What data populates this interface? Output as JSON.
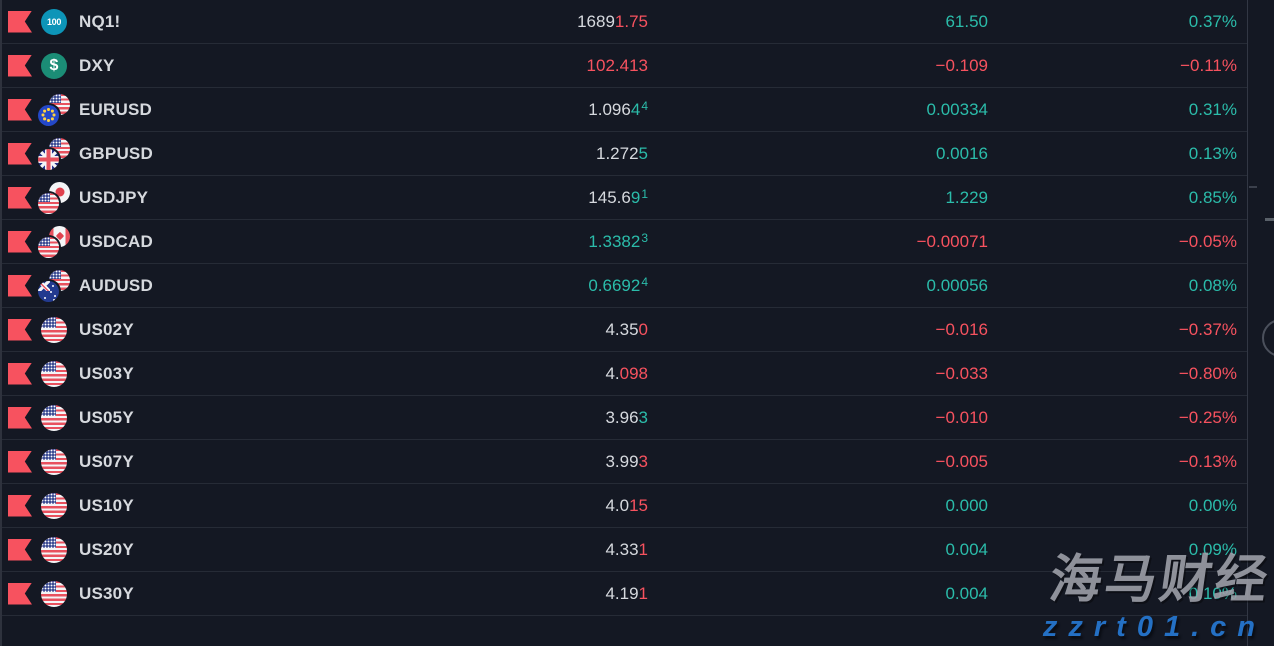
{
  "watchlist": {
    "rows": [
      {
        "symbol": "NQ1!",
        "icon": {
          "kind": "badge",
          "style": "nasdaq",
          "label": "100",
          "name": "nasdaq-100-icon"
        },
        "price": [
          {
            "t": "1689",
            "c": "neutral"
          },
          {
            "t": "1.75",
            "c": "down"
          }
        ],
        "change": {
          "t": "61.50",
          "dir": "up"
        },
        "percent": {
          "t": "0.37%",
          "dir": "up"
        }
      },
      {
        "symbol": "DXY",
        "icon": {
          "kind": "badge",
          "style": "dollar",
          "label": "$",
          "name": "dollar-index-icon"
        },
        "price": [
          {
            "t": "102.413",
            "c": "down"
          }
        ],
        "change": {
          "t": "−0.109",
          "dir": "down"
        },
        "percent": {
          "t": "−0.11%",
          "dir": "down"
        }
      },
      {
        "symbol": "EURUSD",
        "icon": {
          "kind": "pair",
          "front": "eu",
          "back": "us",
          "name": "eurusd-flags-icon"
        },
        "price": [
          {
            "t": "1.096",
            "c": "neutral"
          },
          {
            "t": "4",
            "c": "up"
          },
          {
            "t": "4",
            "c": "up",
            "sup": true
          }
        ],
        "change": {
          "t": "0.00334",
          "dir": "up"
        },
        "percent": {
          "t": "0.31%",
          "dir": "up"
        }
      },
      {
        "symbol": "GBPUSD",
        "icon": {
          "kind": "pair",
          "front": "gb",
          "back": "us",
          "name": "gbpusd-flags-icon"
        },
        "price": [
          {
            "t": "1.272",
            "c": "neutral"
          },
          {
            "t": "5",
            "c": "up"
          }
        ],
        "change": {
          "t": "0.0016",
          "dir": "up"
        },
        "percent": {
          "t": "0.13%",
          "dir": "up"
        }
      },
      {
        "symbol": "USDJPY",
        "icon": {
          "kind": "pair",
          "front": "us",
          "back": "jp",
          "name": "usdjpy-flags-icon"
        },
        "price": [
          {
            "t": "145.6",
            "c": "neutral"
          },
          {
            "t": "9",
            "c": "up"
          },
          {
            "t": "1",
            "c": "up",
            "sup": true
          }
        ],
        "change": {
          "t": "1.229",
          "dir": "up"
        },
        "percent": {
          "t": "0.85%",
          "dir": "up"
        }
      },
      {
        "symbol": "USDCAD",
        "icon": {
          "kind": "pair",
          "front": "us",
          "back": "ca",
          "name": "usdcad-flags-icon"
        },
        "price": [
          {
            "t": "1.3382",
            "c": "up"
          },
          {
            "t": "3",
            "c": "up",
            "sup": true
          }
        ],
        "change": {
          "t": "−0.00071",
          "dir": "down"
        },
        "percent": {
          "t": "−0.05%",
          "dir": "down"
        }
      },
      {
        "symbol": "AUDUSD",
        "icon": {
          "kind": "pair",
          "front": "au",
          "back": "us",
          "name": "audusd-flags-icon"
        },
        "price": [
          {
            "t": "0.6692",
            "c": "up"
          },
          {
            "t": "4",
            "c": "up",
            "sup": true
          }
        ],
        "change": {
          "t": "0.00056",
          "dir": "up"
        },
        "percent": {
          "t": "0.08%",
          "dir": "up"
        }
      },
      {
        "symbol": "US02Y",
        "icon": {
          "kind": "flag",
          "country": "us",
          "name": "us-flag-icon"
        },
        "price": [
          {
            "t": "4.35",
            "c": "neutral"
          },
          {
            "t": "0",
            "c": "down"
          }
        ],
        "change": {
          "t": "−0.016",
          "dir": "down"
        },
        "percent": {
          "t": "−0.37%",
          "dir": "down"
        }
      },
      {
        "symbol": "US03Y",
        "icon": {
          "kind": "flag",
          "country": "us",
          "name": "us-flag-icon"
        },
        "price": [
          {
            "t": "4.",
            "c": "neutral"
          },
          {
            "t": "098",
            "c": "down"
          }
        ],
        "change": {
          "t": "−0.033",
          "dir": "down"
        },
        "percent": {
          "t": "−0.80%",
          "dir": "down"
        }
      },
      {
        "symbol": "US05Y",
        "icon": {
          "kind": "flag",
          "country": "us",
          "name": "us-flag-icon"
        },
        "price": [
          {
            "t": "3.96",
            "c": "neutral"
          },
          {
            "t": "3",
            "c": "up"
          }
        ],
        "change": {
          "t": "−0.010",
          "dir": "down"
        },
        "percent": {
          "t": "−0.25%",
          "dir": "down"
        }
      },
      {
        "symbol": "US07Y",
        "icon": {
          "kind": "flag",
          "country": "us",
          "name": "us-flag-icon"
        },
        "price": [
          {
            "t": "3.99",
            "c": "neutral"
          },
          {
            "t": "3",
            "c": "down"
          }
        ],
        "change": {
          "t": "−0.005",
          "dir": "down"
        },
        "percent": {
          "t": "−0.13%",
          "dir": "down"
        }
      },
      {
        "symbol": "US10Y",
        "icon": {
          "kind": "flag",
          "country": "us",
          "name": "us-flag-icon"
        },
        "price": [
          {
            "t": "4.0",
            "c": "neutral"
          },
          {
            "t": "15",
            "c": "down"
          }
        ],
        "change": {
          "t": "0.000",
          "dir": "up"
        },
        "percent": {
          "t": "0.00%",
          "dir": "up"
        }
      },
      {
        "symbol": "US20Y",
        "icon": {
          "kind": "flag",
          "country": "us",
          "name": "us-flag-icon"
        },
        "price": [
          {
            "t": "4.33",
            "c": "neutral"
          },
          {
            "t": "1",
            "c": "down"
          }
        ],
        "change": {
          "t": "0.004",
          "dir": "up"
        },
        "percent": {
          "t": "0.09%",
          "dir": "up"
        }
      },
      {
        "symbol": "US30Y",
        "icon": {
          "kind": "flag",
          "country": "us",
          "name": "us-flag-icon"
        },
        "price": [
          {
            "t": "4.19",
            "c": "neutral"
          },
          {
            "t": "1",
            "c": "down"
          }
        ],
        "change": {
          "t": "0.004",
          "dir": "up"
        },
        "percent": {
          "t": "0.10%",
          "dir": "up"
        }
      }
    ]
  },
  "watermark": {
    "title": "海马财经",
    "site": "zzrt01.cn"
  },
  "colors": {
    "background": "#141823",
    "up": "#2bbcaa",
    "down": "#f7525f",
    "text": "#d6d9de",
    "flag_red": "#f7525f",
    "nasdaq_badge": "#0d95b8",
    "dollar_badge": "#1b8d76",
    "watermark_blue": "#2470c4",
    "watermark_gray": "#9fa2aa",
    "row_line": "#262b36"
  }
}
